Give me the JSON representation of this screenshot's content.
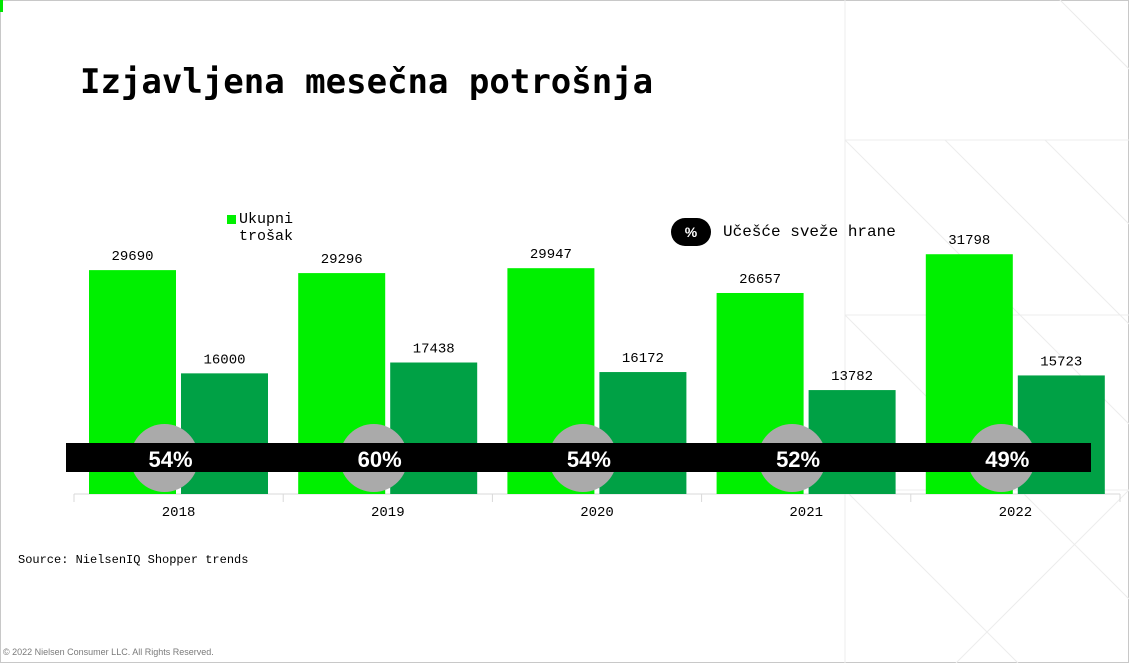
{
  "title": "Izjavljena mesečna potrošnja",
  "legend": {
    "total_label": "Ukupni trošak",
    "share_symbol": "%",
    "share_label": "Učešće sveže hrane"
  },
  "source": "Source: NielsenIQ Shopper trends",
  "copyright": "© 2022 Nielsen Consumer LLC. All Rights Reserved.",
  "colors": {
    "total_bar": "#00f000",
    "fresh_bar": "#00a145",
    "band": "#000000",
    "share_circle": "#aaaaaa",
    "share_text": "#ffffff"
  },
  "chart_data": {
    "type": "bar",
    "categories": [
      "2018",
      "2019",
      "2020",
      "2021",
      "2022"
    ],
    "series": [
      {
        "name": "Ukupni trošak",
        "values": [
          29690,
          29296,
          29947,
          26657,
          31798
        ]
      },
      {
        "name": "",
        "values": [
          16000,
          17438,
          16172,
          13782,
          15723
        ]
      }
    ],
    "share_percent": [
      "54%",
      "60%",
      "54%",
      "52%",
      "49%"
    ],
    "ylim": [
      0,
      37000
    ],
    "xlabel": "",
    "ylabel": "",
    "grid": false,
    "legend_position": "top"
  }
}
